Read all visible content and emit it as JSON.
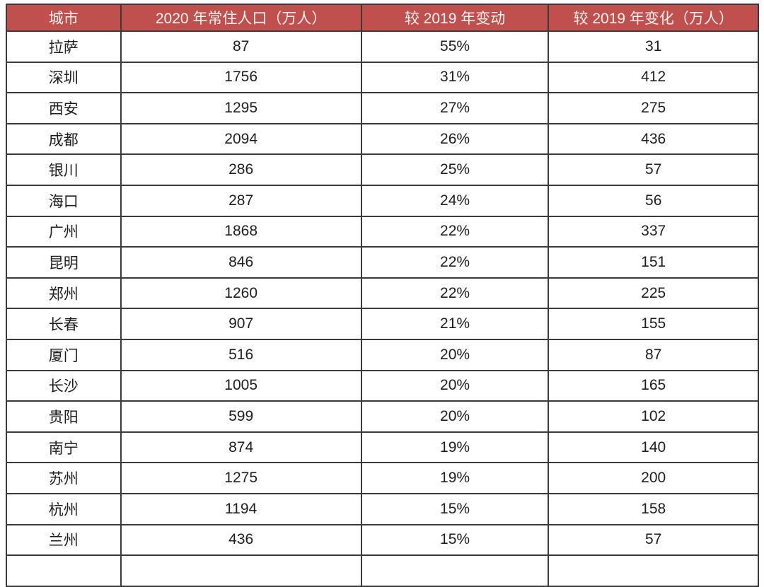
{
  "table": {
    "columns": [
      {
        "label": "城市"
      },
      {
        "label": "2020 年常住人口（万人）"
      },
      {
        "label": "较 2019 年变动"
      },
      {
        "label": "较 2019 年变化（万人）"
      }
    ],
    "rows": [
      [
        "拉萨",
        "87",
        "55%",
        "31"
      ],
      [
        "深圳",
        "1756",
        "31%",
        "412"
      ],
      [
        "西安",
        "1295",
        "27%",
        "275"
      ],
      [
        "成都",
        "2094",
        "26%",
        "436"
      ],
      [
        "银川",
        "286",
        "25%",
        "57"
      ],
      [
        "海口",
        "287",
        "24%",
        "56"
      ],
      [
        "广州",
        "1868",
        "22%",
        "337"
      ],
      [
        "昆明",
        "846",
        "22%",
        "151"
      ],
      [
        "郑州",
        "1260",
        "22%",
        "225"
      ],
      [
        "长春",
        "907",
        "21%",
        "155"
      ],
      [
        "厦门",
        "516",
        "20%",
        "87"
      ],
      [
        "长沙",
        "1005",
        "20%",
        "165"
      ],
      [
        "贵阳",
        "599",
        "20%",
        "102"
      ],
      [
        "南宁",
        "874",
        "19%",
        "140"
      ],
      [
        "苏州",
        "1275",
        "19%",
        "200"
      ],
      [
        "杭州",
        "1194",
        "15%",
        "158"
      ],
      [
        "兰州",
        "436",
        "15%",
        "57"
      ]
    ],
    "colors": {
      "header_bg": "#c0504d",
      "header_text": "#faf3f2",
      "border": "#3b3b3b",
      "body_text": "#1e1e1e",
      "row_bg": "#ffffff"
    }
  },
  "chart_data": {
    "type": "table",
    "title": "",
    "columns": [
      "城市",
      "2020 年常住人口（万人）",
      "较 2019 年变动",
      "较 2019 年变化（万人）"
    ],
    "categories": [
      "拉萨",
      "深圳",
      "西安",
      "成都",
      "银川",
      "海口",
      "广州",
      "昆明",
      "郑州",
      "长春",
      "厦门",
      "长沙",
      "贵阳",
      "南宁",
      "苏州",
      "杭州",
      "兰州"
    ],
    "series": [
      {
        "name": "2020 年常住人口（万人）",
        "values": [
          87,
          1756,
          1295,
          2094,
          286,
          287,
          1868,
          846,
          1260,
          907,
          516,
          1005,
          599,
          874,
          1275,
          1194,
          436
        ]
      },
      {
        "name": "较 2019 年变动 (%)",
        "values": [
          55,
          31,
          27,
          26,
          25,
          24,
          22,
          22,
          22,
          21,
          20,
          20,
          20,
          19,
          19,
          15,
          15
        ]
      },
      {
        "name": "较 2019 年变化（万人）",
        "values": [
          31,
          412,
          275,
          436,
          57,
          56,
          337,
          151,
          225,
          155,
          87,
          165,
          102,
          140,
          200,
          158,
          57
        ]
      }
    ],
    "layout": {
      "grid": true,
      "sort_order": "较 2019 年变动 descending"
    }
  }
}
